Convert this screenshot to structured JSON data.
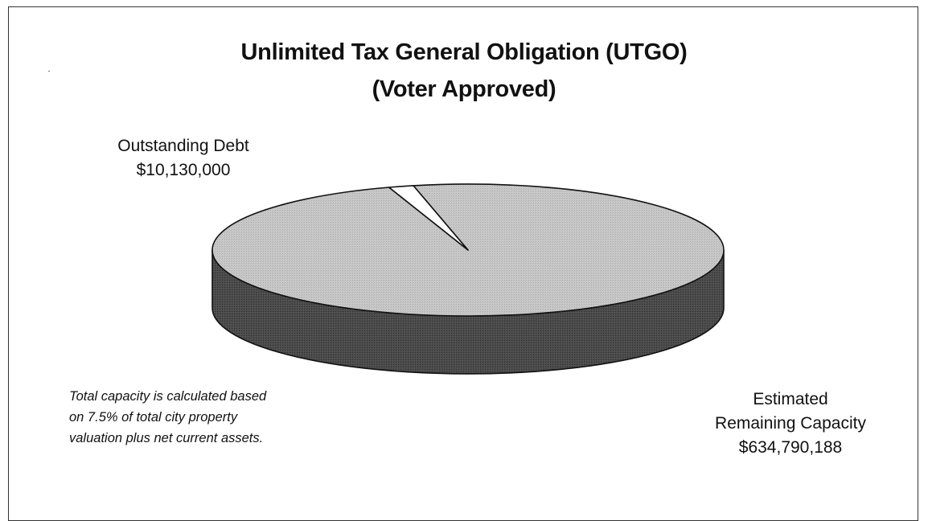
{
  "chart_data": {
    "type": "pie",
    "title": "Unlimited Tax General Obligation (UTGO)",
    "subtitle": "(Voter Approved)",
    "slices": [
      {
        "label": "Outstanding Debt",
        "value": 10130000,
        "value_label": "$10,130,000",
        "color": "#ffffff"
      },
      {
        "label": "Estimated Remaining Capacity",
        "value": 634790188,
        "value_label": "$634,790,188",
        "color": "#c6c6c6"
      }
    ],
    "remaining_label_lines": [
      "Estimated",
      "Remaining Capacity"
    ],
    "style": "3d",
    "legend": "none",
    "annotation_lines": [
      "Total capacity is calculated based",
      "on 7.5% of total city property",
      "valuation plus net current assets."
    ],
    "colors": {
      "top_face": "#c6c6c6",
      "side_face": "#4a4a4a",
      "outline": "#111111"
    }
  }
}
